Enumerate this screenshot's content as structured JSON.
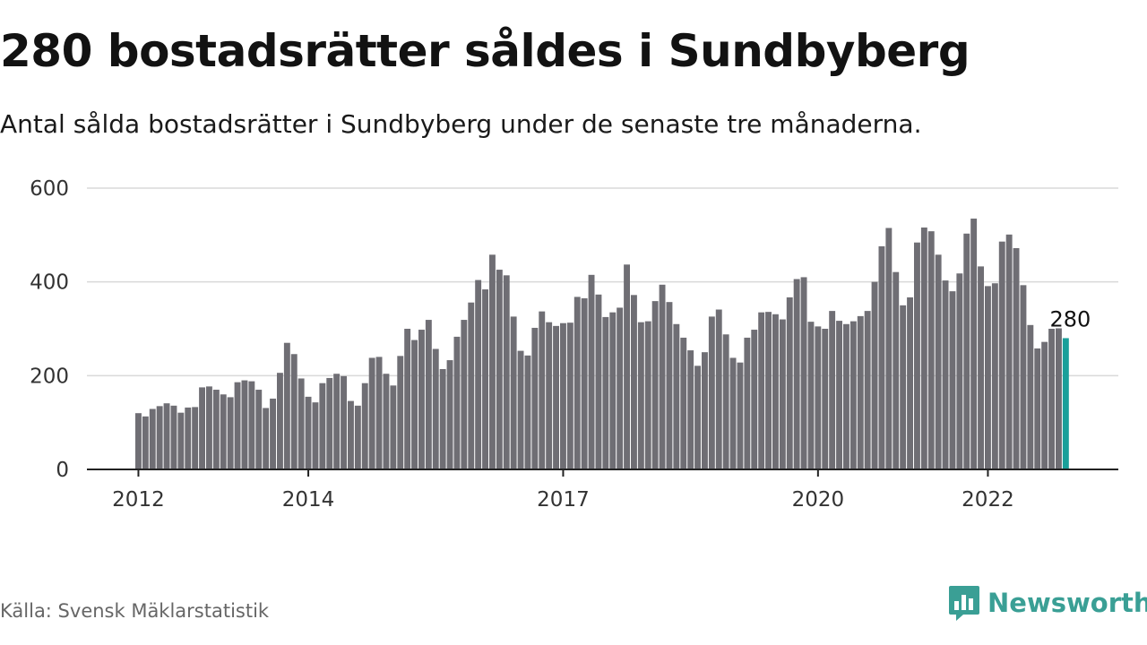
{
  "title": "280 bostadsrätter såldes i Sundbyberg",
  "subtitle": "Antal sålda bostadsrätter i Sundbyberg under de senaste tre månaderna.",
  "source": "Källa: Svensk Mäklarstatistik",
  "brand": {
    "name": "Newsworthy",
    "color": "#3a9f95",
    "icon": "bar-chart-speech-bubble-icon"
  },
  "colors": {
    "bar": "#6f6e74",
    "highlight": "#1aa09a",
    "grid": "#d9d9d9",
    "axis": "#222222"
  },
  "chart_data": {
    "type": "bar",
    "x_start": "2012-01",
    "x_interval": "month",
    "ylim": [
      0,
      600
    ],
    "yticks": [
      0,
      200,
      400,
      600
    ],
    "xticks": [
      "2012",
      "2014",
      "2017",
      "2020",
      "2022"
    ],
    "grid": true,
    "values": [
      120,
      113,
      129,
      135,
      141,
      136,
      121,
      132,
      133,
      175,
      177,
      170,
      160,
      154,
      186,
      190,
      188,
      170,
      131,
      151,
      206,
      270,
      246,
      194,
      155,
      143,
      184,
      195,
      204,
      199,
      146,
      136,
      184,
      238,
      240,
      204,
      179,
      242,
      300,
      276,
      298,
      319,
      257,
      214,
      233,
      283,
      319,
      356,
      404,
      384,
      458,
      426,
      414,
      326,
      253,
      243,
      302,
      337,
      314,
      306,
      312,
      313,
      368,
      365,
      415,
      373,
      325,
      335,
      345,
      437,
      372,
      314,
      316,
      359,
      394,
      357,
      310,
      281,
      254,
      221,
      250,
      326,
      341,
      288,
      238,
      228,
      281,
      298,
      335,
      336,
      331,
      320,
      367,
      406,
      410,
      315,
      305,
      300,
      338,
      317,
      310,
      316,
      327,
      338,
      400,
      476,
      515,
      421,
      350,
      367,
      484,
      516,
      508,
      458,
      403,
      380,
      418,
      503,
      535,
      433,
      391,
      397,
      486,
      501,
      472,
      393,
      308,
      258,
      272,
      300,
      301,
      280
    ],
    "highlight_index": 131,
    "highlight_label": "280"
  }
}
